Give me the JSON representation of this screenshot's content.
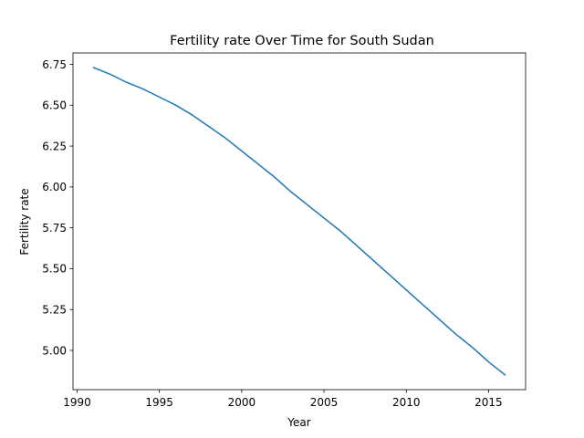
{
  "chart_data": {
    "type": "line",
    "title": "Fertility rate Over Time for South Sudan",
    "xlabel": "Year",
    "ylabel": "Fertility rate",
    "xlim": [
      1989.75,
      2017.25
    ],
    "ylim": [
      4.76,
      6.82
    ],
    "xticks": [
      1990,
      1995,
      2000,
      2005,
      2010,
      2015
    ],
    "xtick_labels": [
      "1990",
      "1995",
      "2000",
      "2005",
      "2010",
      "2015"
    ],
    "yticks": [
      5.0,
      5.25,
      5.5,
      5.75,
      6.0,
      6.25,
      6.5,
      6.75
    ],
    "ytick_labels": [
      "5.00",
      "5.25",
      "5.50",
      "5.75",
      "6.00",
      "6.25",
      "6.50",
      "6.75"
    ],
    "grid": false,
    "line_color": "#1f77b4",
    "series": [
      {
        "x": [
          1991,
          1992,
          1993,
          1994,
          1995,
          1996,
          1997,
          1998,
          1999,
          2000,
          2001,
          2002,
          2003,
          2004,
          2005,
          2006,
          2007,
          2008,
          2009,
          2010,
          2011,
          2012,
          2013,
          2014,
          2015,
          2016
        ],
        "values": [
          6.73,
          6.69,
          6.64,
          6.6,
          6.55,
          6.5,
          6.44,
          6.37,
          6.3,
          6.22,
          6.14,
          6.06,
          5.97,
          5.89,
          5.81,
          5.73,
          5.64,
          5.55,
          5.46,
          5.37,
          5.28,
          5.19,
          5.1,
          5.02,
          4.93,
          4.85
        ]
      }
    ]
  }
}
